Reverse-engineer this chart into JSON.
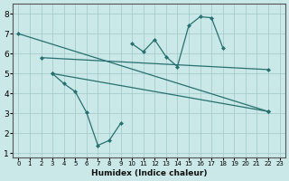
{
  "background_color": "#cbe8e8",
  "grid_color": "#b0d0d0",
  "line_color": "#267070",
  "xlabel": "Humidex (Indice chaleur)",
  "xlim": [
    -0.5,
    23.5
  ],
  "ylim": [
    0.8,
    8.5
  ],
  "xticks": [
    0,
    1,
    2,
    3,
    4,
    5,
    6,
    7,
    8,
    9,
    10,
    11,
    12,
    13,
    14,
    15,
    16,
    17,
    18,
    19,
    20,
    21,
    22,
    23
  ],
  "yticks": [
    1,
    2,
    3,
    4,
    5,
    6,
    7,
    8
  ],
  "lines": [
    {
      "x": [
        0,
        22
      ],
      "y": [
        7.0,
        3.1
      ],
      "markers": true
    },
    {
      "x": [
        2,
        22
      ],
      "y": [
        5.8,
        5.2
      ],
      "markers": true
    },
    {
      "x": [
        3,
        22
      ],
      "y": [
        5.0,
        3.1
      ],
      "markers": true
    },
    {
      "x": [
        10,
        11,
        12,
        13,
        14,
        15,
        16,
        17,
        18
      ],
      "y": [
        6.5,
        6.1,
        6.7,
        5.85,
        5.35,
        7.4,
        7.85,
        7.8,
        6.3
      ],
      "markers": true
    },
    {
      "x": [
        3,
        4,
        5,
        6,
        7,
        8,
        9
      ],
      "y": [
        5.0,
        4.5,
        4.1,
        3.05,
        1.4,
        1.65,
        2.5
      ],
      "markers": true
    }
  ]
}
